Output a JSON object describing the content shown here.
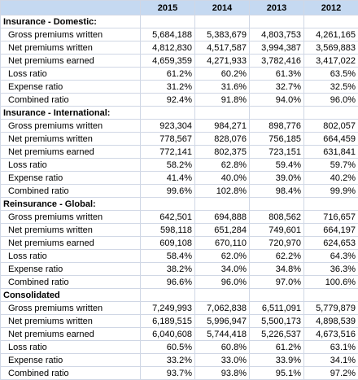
{
  "table": {
    "header": [
      "2015",
      "2014",
      "2013",
      "2012"
    ],
    "sections": [
      {
        "title": "Insurance - Domestic:",
        "rows": [
          {
            "label": "Gross premiums written",
            "values": [
              "5,684,188",
              "5,383,679",
              "4,803,753",
              "4,261,165"
            ]
          },
          {
            "label": "Net premiums written",
            "values": [
              "4,812,830",
              "4,517,587",
              "3,994,387",
              "3,569,883"
            ]
          },
          {
            "label": "Net premiums earned",
            "values": [
              "4,659,359",
              "4,271,933",
              "3,782,416",
              "3,417,022"
            ]
          },
          {
            "label": "Loss ratio",
            "values": [
              "61.2%",
              "60.2%",
              "61.3%",
              "63.5%"
            ]
          },
          {
            "label": "Expense ratio",
            "values": [
              "31.2%",
              "31.6%",
              "32.7%",
              "32.5%"
            ]
          },
          {
            "label": "Combined ratio",
            "values": [
              "92.4%",
              "91.8%",
              "94.0%",
              "96.0%"
            ]
          }
        ]
      },
      {
        "title": "Insurance - International:",
        "rows": [
          {
            "label": "Gross premiums written",
            "values": [
              "923,304",
              "984,271",
              "898,776",
              "802,057"
            ]
          },
          {
            "label": "Net premiums written",
            "values": [
              "778,567",
              "828,076",
              "756,185",
              "664,459"
            ]
          },
          {
            "label": "Net premiums earned",
            "values": [
              "772,141",
              "802,375",
              "723,151",
              "631,841"
            ]
          },
          {
            "label": "Loss ratio",
            "values": [
              "58.2%",
              "62.8%",
              "59.4%",
              "59.7%"
            ]
          },
          {
            "label": "Expense ratio",
            "values": [
              "41.4%",
              "40.0%",
              "39.0%",
              "40.2%"
            ]
          },
          {
            "label": "Combined ratio",
            "values": [
              "99.6%",
              "102.8%",
              "98.4%",
              "99.9%"
            ]
          }
        ]
      },
      {
        "title": "Reinsurance - Global:",
        "rows": [
          {
            "label": "Gross premiums written",
            "values": [
              "642,501",
              "694,888",
              "808,562",
              "716,657"
            ]
          },
          {
            "label": "Net premiums written",
            "values": [
              "598,118",
              "651,284",
              "749,601",
              "664,197"
            ]
          },
          {
            "label": "Net premiums earned",
            "values": [
              "609,108",
              "670,110",
              "720,970",
              "624,653"
            ]
          },
          {
            "label": "Loss ratio",
            "values": [
              "58.4%",
              "62.0%",
              "62.2%",
              "64.3%"
            ]
          },
          {
            "label": "Expense ratio",
            "values": [
              "38.2%",
              "34.0%",
              "34.8%",
              "36.3%"
            ]
          },
          {
            "label": "Combined ratio",
            "values": [
              "96.6%",
              "96.0%",
              "97.0%",
              "100.6%"
            ]
          }
        ]
      },
      {
        "title": "Consolidated",
        "rows": [
          {
            "label": "Gross premiums written",
            "values": [
              "7,249,993",
              "7,062,838",
              "6,511,091",
              "5,779,879"
            ]
          },
          {
            "label": "Net premiums written",
            "values": [
              "6,189,515",
              "5,996,947",
              "5,500,173",
              "4,898,539"
            ]
          },
          {
            "label": "Net premiums earned",
            "values": [
              "6,040,608",
              "5,744,418",
              "5,226,537",
              "4,673,516"
            ]
          },
          {
            "label": "Loss ratio",
            "values": [
              "60.5%",
              "60.8%",
              "61.2%",
              "63.1%"
            ]
          },
          {
            "label": "Expense ratio",
            "values": [
              "33.2%",
              "33.0%",
              "33.9%",
              "34.1%"
            ]
          },
          {
            "label": "Combined ratio",
            "values": [
              "93.7%",
              "93.8%",
              "95.1%",
              "97.2%"
            ]
          }
        ]
      }
    ]
  }
}
